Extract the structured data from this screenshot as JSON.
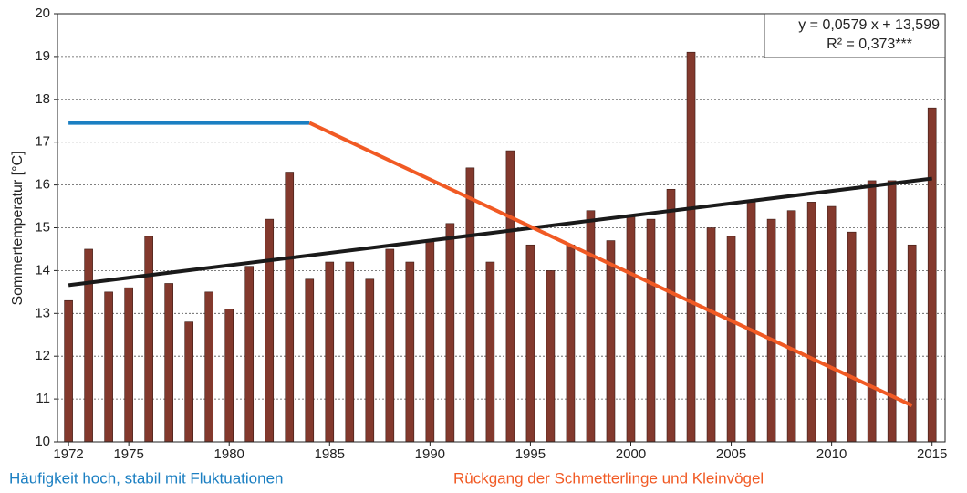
{
  "chart_data": {
    "type": "bar",
    "y_label": "Sommertemperatur [°C]",
    "annotations": [
      "y = 0,0579 x + 13,599",
      "R² = 0,373***"
    ],
    "x": [
      1972,
      1973,
      1974,
      1975,
      1976,
      1977,
      1978,
      1979,
      1980,
      1981,
      1982,
      1983,
      1984,
      1985,
      1986,
      1987,
      1988,
      1989,
      1990,
      1991,
      1992,
      1993,
      1994,
      1995,
      1996,
      1997,
      1998,
      1999,
      2000,
      2001,
      2002,
      2003,
      2004,
      2005,
      2006,
      2007,
      2008,
      2009,
      2010,
      2011,
      2012,
      2013,
      2014,
      2015
    ],
    "values": [
      13.3,
      14.5,
      13.5,
      13.6,
      14.8,
      13.7,
      12.8,
      13.5,
      13.1,
      14.1,
      15.2,
      16.3,
      13.8,
      14.2,
      14.2,
      13.8,
      14.5,
      14.2,
      14.7,
      15.1,
      16.4,
      14.2,
      16.8,
      14.6,
      14.0,
      14.6,
      15.4,
      14.7,
      15.3,
      15.2,
      15.9,
      19.1,
      15.0,
      14.8,
      15.6,
      15.2,
      15.4,
      15.6,
      15.5,
      14.9,
      16.1,
      16.1,
      14.6,
      17.8
    ],
    "color": "#83392d",
    "trend": {
      "color": "#1a1a1a",
      "x": [
        1972,
        2015
      ],
      "values": [
        13.66,
        16.15
      ]
    },
    "phases": [
      {
        "name": "Häufigkeit hoch, stabil mit Fluktuationen",
        "color": "#1b7fc2",
        "x": [
          1972,
          1984
        ],
        "values": [
          17.45,
          17.45
        ]
      },
      {
        "name": "Rückgang der Schmetterlinge und Kleinvögel",
        "color": "#f15a24",
        "x": [
          1984,
          2014
        ],
        "values": [
          17.45,
          10.85
        ]
      }
    ],
    "xlim": [
      1971.45,
      2015.65
    ],
    "xticks": [
      1972,
      1975,
      1980,
      1985,
      1990,
      1995,
      2000,
      2005,
      2010,
      2015
    ],
    "ylim": [
      10,
      20
    ],
    "yticks": [
      10,
      11,
      12,
      13,
      14,
      15,
      16,
      17,
      18,
      19,
      20
    ],
    "grid": true
  }
}
